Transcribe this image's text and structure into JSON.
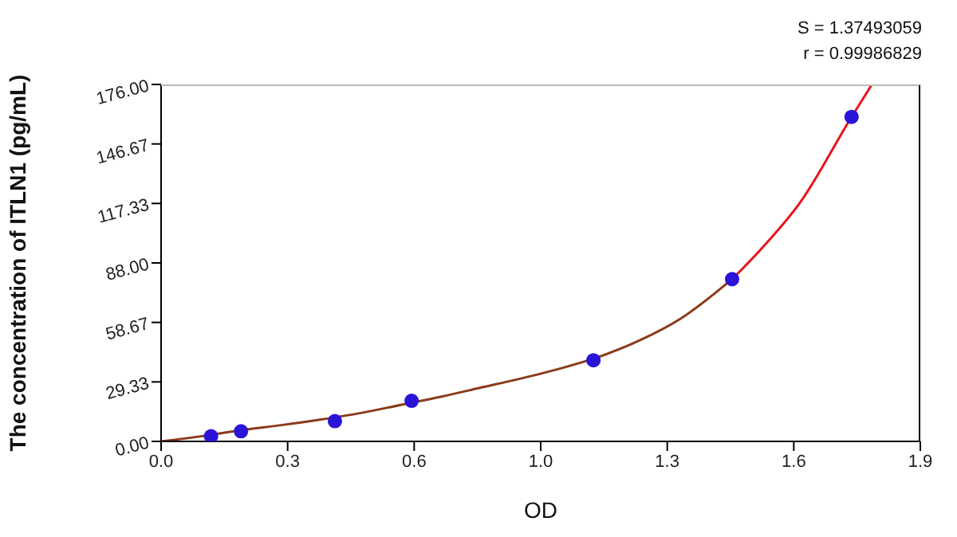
{
  "chart_data": {
    "type": "scatter",
    "xlabel": "OD",
    "ylabel": "The concentration of ITLN1 (pg/mL)",
    "annotations": [
      "S = 1.37493059",
      "r = 0.99986829"
    ],
    "xlim": [
      0,
      1.9
    ],
    "ylim": [
      0,
      176
    ],
    "xticks": [
      {
        "value": 0,
        "label": "0.0"
      },
      {
        "value": 0.3166667,
        "label": "0.3"
      },
      {
        "value": 0.6333333,
        "label": "0.6"
      },
      {
        "value": 0.95,
        "label": "1.0"
      },
      {
        "value": 1.2666667,
        "label": "1.3"
      },
      {
        "value": 1.5833333,
        "label": "1.6"
      },
      {
        "value": 1.9,
        "label": "1.9"
      }
    ],
    "yticks": [
      {
        "value": 0,
        "label": "0.00"
      },
      29.33,
      58.67,
      {
        "value": 88,
        "label": "88.00"
      },
      117.33,
      146.67,
      {
        "value": 176,
        "label": "176.00"
      }
    ],
    "grid": false,
    "series": [
      {
        "type": "line",
        "color": "#8b3a1a",
        "marker": "none",
        "line_style": "solid",
        "x": [
          0,
          0.1,
          0.2,
          0.3,
          0.4,
          0.5,
          0.6,
          0.7,
          0.8,
          0.9,
          1.0,
          1.1,
          1.2,
          1.3,
          1.429
        ],
        "values": [
          0,
          2.5,
          5.5,
          8,
          10.8,
          14,
          18,
          22,
          26.5,
          31,
          36,
          42,
          50,
          60.5,
          80
        ]
      },
      {
        "type": "line",
        "color": "#e8141e",
        "marker": "none",
        "line_style": "solid",
        "x": [
          1.429,
          1.5,
          1.6,
          1.728,
          1.779
        ],
        "values": [
          80,
          94.5,
          118,
          160,
          176
        ]
      },
      {
        "color": "#2a14d8",
        "marker": "circle",
        "x": [
          0.125,
          0.2,
          0.435,
          0.627,
          1.082,
          1.429,
          1.728
        ],
        "values": [
          2.5,
          5,
          10,
          20,
          40,
          80,
          160
        ]
      }
    ]
  }
}
